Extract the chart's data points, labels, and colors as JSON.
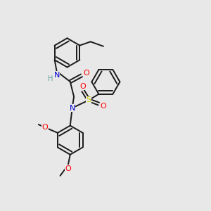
{
  "background_color": "#e8e8e8",
  "atom_colors": {
    "N": "#0000cd",
    "O": "#ff0000",
    "S": "#cccc00",
    "C": "#000000",
    "H": "#5f9ea0"
  },
  "bond_color": "#1a1a1a",
  "bond_width": 1.4,
  "fig_w": 3.0,
  "fig_h": 3.0,
  "dpi": 100
}
